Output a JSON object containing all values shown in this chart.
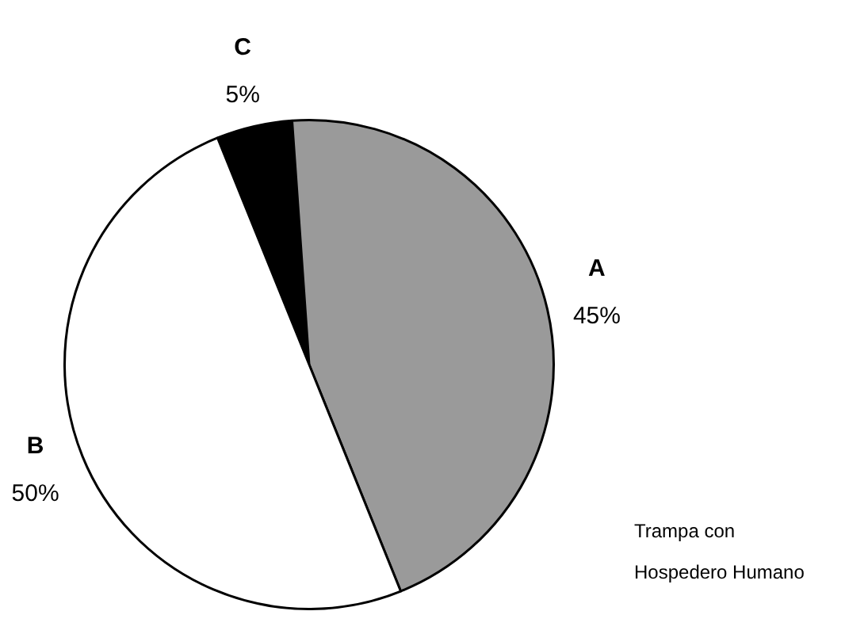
{
  "chart_data": {
    "type": "pie",
    "categories": [
      "C",
      "A",
      "B"
    ],
    "values": [
      5,
      45,
      50
    ],
    "colors": [
      "#000000",
      "#9a9a9a",
      "#ffffff"
    ],
    "value_labels": [
      "5%",
      "45%",
      "50%"
    ],
    "legend": false,
    "annotations": [
      "Trampa con\nHospedero Humano"
    ]
  }
}
